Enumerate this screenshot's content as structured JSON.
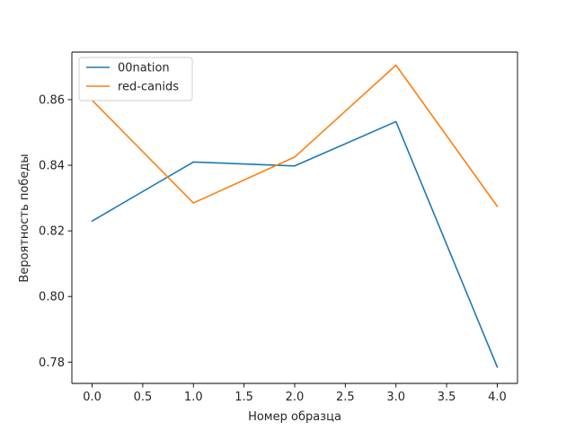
{
  "chart_data": {
    "type": "line",
    "title": "",
    "xlabel": "Номер образца",
    "ylabel": "Вероятность победы",
    "x": [
      0,
      1,
      2,
      3,
      4
    ],
    "xlim": [
      -0.2,
      4.2
    ],
    "ylim": [
      0.7735,
      0.8745
    ],
    "xticks": [
      0.0,
      0.5,
      1.0,
      1.5,
      2.0,
      2.5,
      3.0,
      3.5,
      4.0
    ],
    "xtick_labels": [
      "0.0",
      "0.5",
      "1.0",
      "1.5",
      "2.0",
      "2.5",
      "3.0",
      "3.5",
      "4.0"
    ],
    "yticks": [
      0.78,
      0.8,
      0.82,
      0.84,
      0.86
    ],
    "ytick_labels": [
      "0.78",
      "0.80",
      "0.82",
      "0.84",
      "0.86"
    ],
    "grid": false,
    "legend_position": "top-left",
    "series": [
      {
        "name": "00nation",
        "color": "#1f77b4",
        "values": [
          0.823,
          0.841,
          0.8398,
          0.8533,
          0.7785
        ]
      },
      {
        "name": "red-canids",
        "color": "#ff7f0e",
        "values": [
          0.8598,
          0.8285,
          0.8425,
          0.8705,
          0.8275
        ]
      }
    ]
  }
}
